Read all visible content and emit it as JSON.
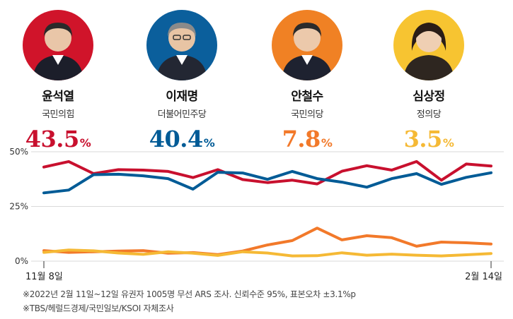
{
  "candidates": [
    {
      "name": "윤석열",
      "party": "국민의힘",
      "value": "43.5",
      "unit": "%",
      "color": "#c8102e",
      "photo_bg": "#d0142a",
      "photo_icon": "person-photo-icon"
    },
    {
      "name": "이재명",
      "party": "더불어민주당",
      "value": "40.4",
      "unit": "%",
      "color": "#005b96",
      "photo_bg": "#0b5f9c",
      "photo_icon": "person-photo-icon"
    },
    {
      "name": "안철수",
      "party": "국민의당",
      "value": "7.8",
      "unit": "%",
      "color": "#f2792a",
      "photo_bg": "#f08124",
      "photo_icon": "person-photo-icon"
    },
    {
      "name": "심상정",
      "party": "정의당",
      "value": "3.5",
      "unit": "%",
      "color": "#f5b935",
      "photo_bg": "#f7c431",
      "photo_icon": "person-photo-icon"
    }
  ],
  "chart_data": {
    "type": "line",
    "title": "",
    "xlabel": "",
    "ylabel": "",
    "ylim": [
      0,
      50
    ],
    "y_ticks": [
      {
        "value": 0,
        "label": "0%"
      },
      {
        "value": 25,
        "label": "25%"
      },
      {
        "value": 50,
        "label": "50%"
      }
    ],
    "x_label_start": "11월 8일",
    "x_label_end": "2월 14일",
    "grid": true,
    "series": [
      {
        "name": "윤석열",
        "color": "#c8102e",
        "values": [
          43.0,
          45.5,
          40.0,
          41.8,
          41.6,
          41.0,
          38.2,
          41.8,
          37.3,
          35.9,
          37.0,
          35.3,
          41.1,
          43.6,
          41.6,
          45.5,
          37.0,
          44.4,
          43.5
        ]
      },
      {
        "name": "이재명",
        "color": "#005b96",
        "values": [
          31.2,
          32.5,
          39.5,
          39.7,
          39.0,
          37.7,
          32.9,
          40.6,
          40.3,
          37.4,
          41.0,
          37.7,
          36.1,
          33.8,
          37.7,
          40.0,
          35.1,
          38.3,
          40.4
        ]
      },
      {
        "name": "안철수",
        "color": "#f2792a",
        "values": [
          4.8,
          4.0,
          4.3,
          4.6,
          4.8,
          3.6,
          3.9,
          3.0,
          4.6,
          7.4,
          9.4,
          15.1,
          9.7,
          11.6,
          10.7,
          6.8,
          8.7,
          8.4,
          7.8
        ]
      },
      {
        "name": "심상정",
        "color": "#f5b935",
        "values": [
          4.0,
          5.1,
          4.7,
          3.7,
          3.1,
          4.3,
          3.6,
          2.6,
          4.3,
          3.7,
          2.4,
          2.5,
          3.8,
          2.7,
          3.2,
          2.7,
          2.4,
          2.9,
          3.5
        ]
      }
    ]
  },
  "footnotes": [
    "※2022년 2월 11일~12일 유권자 1005명 무선 ARS 조사. 신뢰수준 95%, 표본오차 ±3.1%p",
    "※TBS/헤럴드경제/국민일보/KSOI 자체조사"
  ]
}
